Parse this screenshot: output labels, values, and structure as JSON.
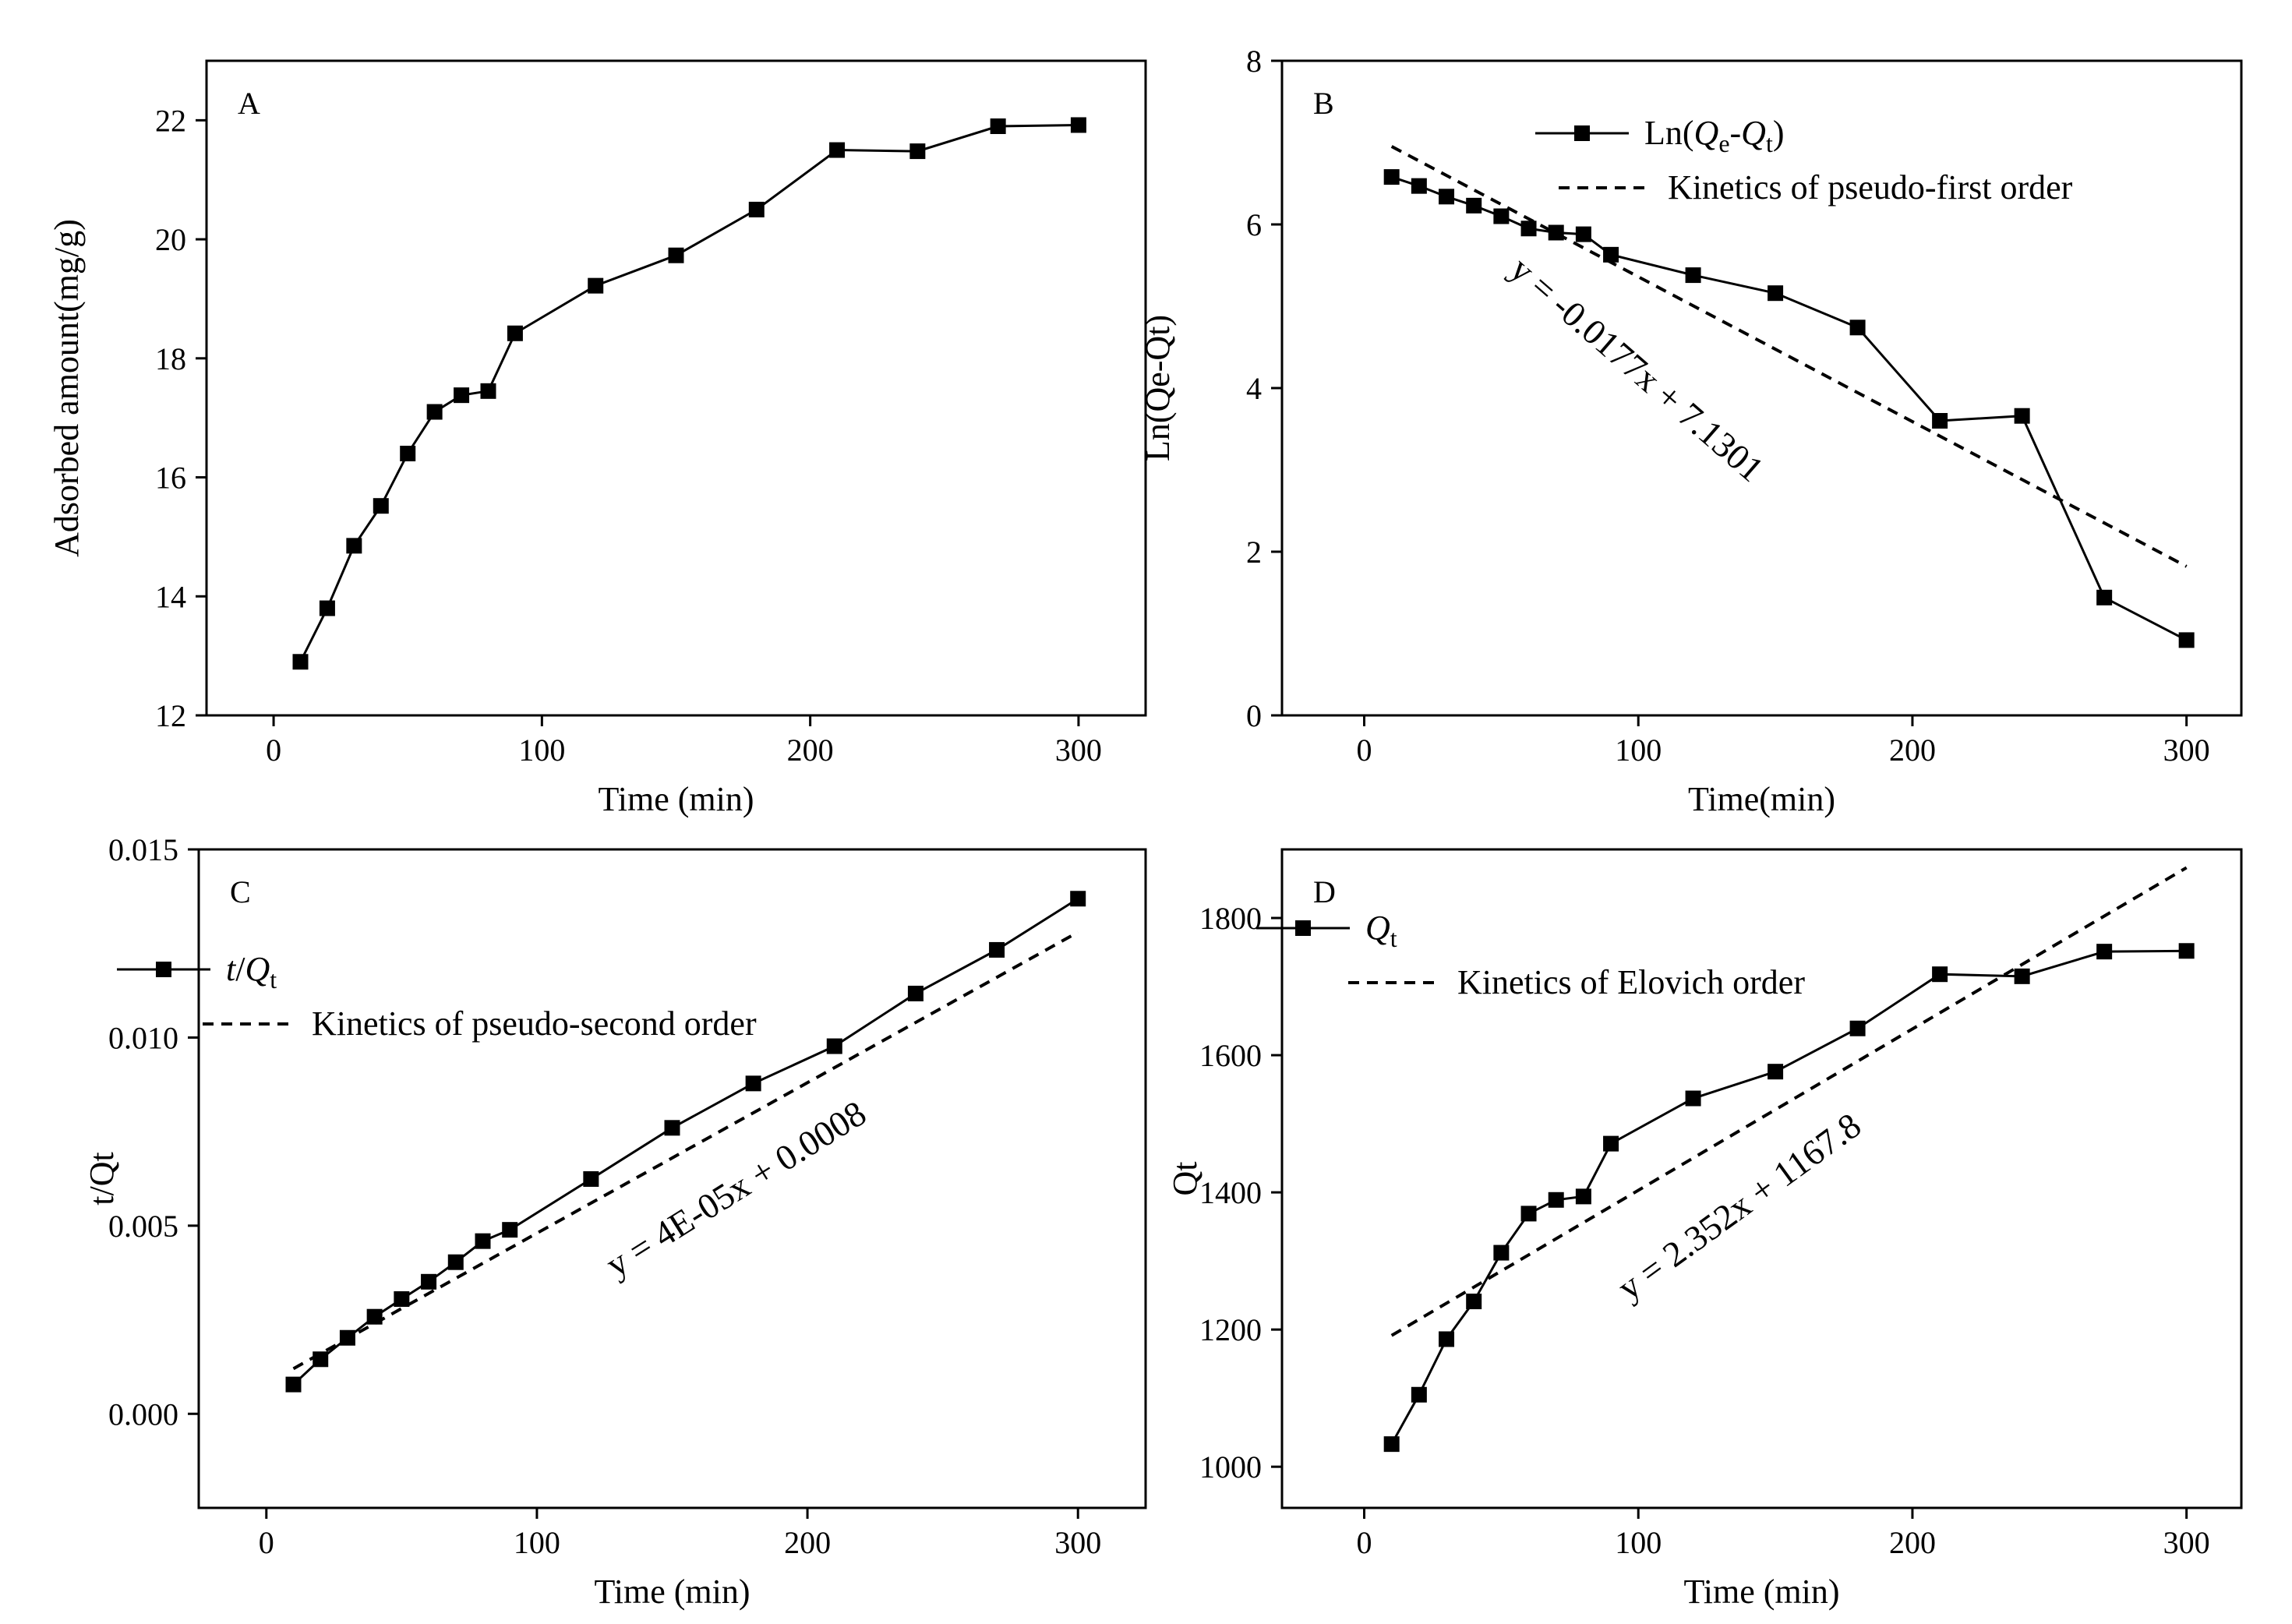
{
  "chart_data": [
    {
      "id": "A",
      "type": "line",
      "panel_label": "A",
      "xlabel": "Time (min)",
      "ylabel": "Adsorbed amount(mg/g)",
      "xlim": [
        -25,
        325
      ],
      "ylim": [
        12,
        23
      ],
      "xticks": [
        0,
        100,
        200,
        300
      ],
      "yticks": [
        12,
        14,
        16,
        18,
        20,
        22
      ],
      "legend": null,
      "series": [
        {
          "name": "Adsorbed amount",
          "x": [
            10,
            20,
            30,
            40,
            50,
            60,
            70,
            80,
            90,
            120,
            150,
            180,
            210,
            240,
            270,
            300
          ],
          "values": [
            12.9,
            13.8,
            14.85,
            15.52,
            16.4,
            17.1,
            17.38,
            17.45,
            18.42,
            19.22,
            19.73,
            20.5,
            21.5,
            21.48,
            21.9,
            21.92
          ]
        }
      ]
    },
    {
      "id": "B",
      "type": "line",
      "panel_label": "B",
      "xlabel": "Time(min)",
      "ylabel": "Ln(Qe-Qt)",
      "xlim": [
        -30,
        320
      ],
      "ylim": [
        0,
        8
      ],
      "xticks": [
        0,
        100,
        200,
        300
      ],
      "yticks": [
        0,
        2,
        4,
        6,
        8
      ],
      "legend": {
        "series_parts": [
          "Ln(",
          "Q",
          "e",
          "-",
          "Q",
          "t",
          ")"
        ],
        "fit_label": "Kinetics of pseudo-first order"
      },
      "series": [
        {
          "name": "Ln(Qe-Qt)",
          "x": [
            10,
            20,
            30,
            40,
            50,
            60,
            70,
            80,
            90,
            120,
            150,
            180,
            210,
            240,
            270,
            300
          ],
          "values": [
            6.58,
            6.47,
            6.34,
            6.23,
            6.1,
            5.95,
            5.9,
            5.88,
            5.63,
            5.38,
            5.16,
            4.74,
            3.6,
            3.66,
            1.44,
            0.92
          ]
        }
      ],
      "fit": {
        "name": "Kinetics of pseudo-first order",
        "slope": -0.0177,
        "intercept": 7.1301,
        "x_range": [
          10,
          300
        ],
        "equation": "y = -0.0177x + 7.1301"
      }
    },
    {
      "id": "C",
      "type": "line",
      "panel_label": "C",
      "xlabel": "Time (min)",
      "ylabel": "t/Qt",
      "xlim": [
        -25,
        325
      ],
      "ylim": [
        -0.0025,
        0.015
      ],
      "xticks": [
        0,
        100,
        200,
        300
      ],
      "yticks": [
        0.0,
        0.005,
        0.01,
        0.015
      ],
      "ytick_labels": [
        "0.000",
        "0.005",
        "0.010",
        "0.015"
      ],
      "legend": {
        "series_parts": [
          "t",
          "/",
          "Q",
          "t"
        ],
        "fit_label": "Kinetics of pseudo-second order"
      },
      "series": [
        {
          "name": "t/Qt",
          "x": [
            10,
            20,
            30,
            40,
            50,
            60,
            70,
            80,
            90,
            120,
            150,
            180,
            210,
            240,
            270,
            300
          ],
          "values": [
            0.00078,
            0.00145,
            0.00202,
            0.00258,
            0.00305,
            0.00351,
            0.00403,
            0.00459,
            0.00489,
            0.00624,
            0.0076,
            0.00878,
            0.00977,
            0.01117,
            0.01233,
            0.01369
          ]
        }
      ],
      "fit": {
        "name": "Kinetics of pseudo-second order",
        "slope": 4e-05,
        "intercept": 0.0008,
        "x_range": [
          10,
          300
        ],
        "equation": "y = 4E-05x + 0.0008"
      }
    },
    {
      "id": "D",
      "type": "line",
      "panel_label": "D",
      "xlabel": "Time (min)",
      "ylabel": "Qt",
      "xlim": [
        -30,
        320
      ],
      "ylim": [
        940,
        1900
      ],
      "xticks": [
        0,
        100,
        200,
        300
      ],
      "yticks": [
        1000,
        1200,
        1400,
        1600,
        1800
      ],
      "legend": {
        "series_parts": [
          "Q",
          "t"
        ],
        "fit_label": "Kinetics of Elovich order"
      },
      "series": [
        {
          "name": "Qt",
          "x": [
            10,
            20,
            30,
            40,
            50,
            60,
            70,
            80,
            90,
            120,
            150,
            180,
            210,
            240,
            270,
            300
          ],
          "values": [
            1033,
            1105,
            1186,
            1241,
            1312,
            1369,
            1389,
            1394,
            1471,
            1537,
            1576,
            1639,
            1718,
            1715,
            1751,
            1752
          ]
        }
      ],
      "fit": {
        "name": "Kinetics of Elovich order",
        "slope": 2.352,
        "intercept": 1167.8,
        "x_range": [
          10,
          300
        ],
        "equation": "y = 2.352x + 1167.8"
      }
    }
  ]
}
